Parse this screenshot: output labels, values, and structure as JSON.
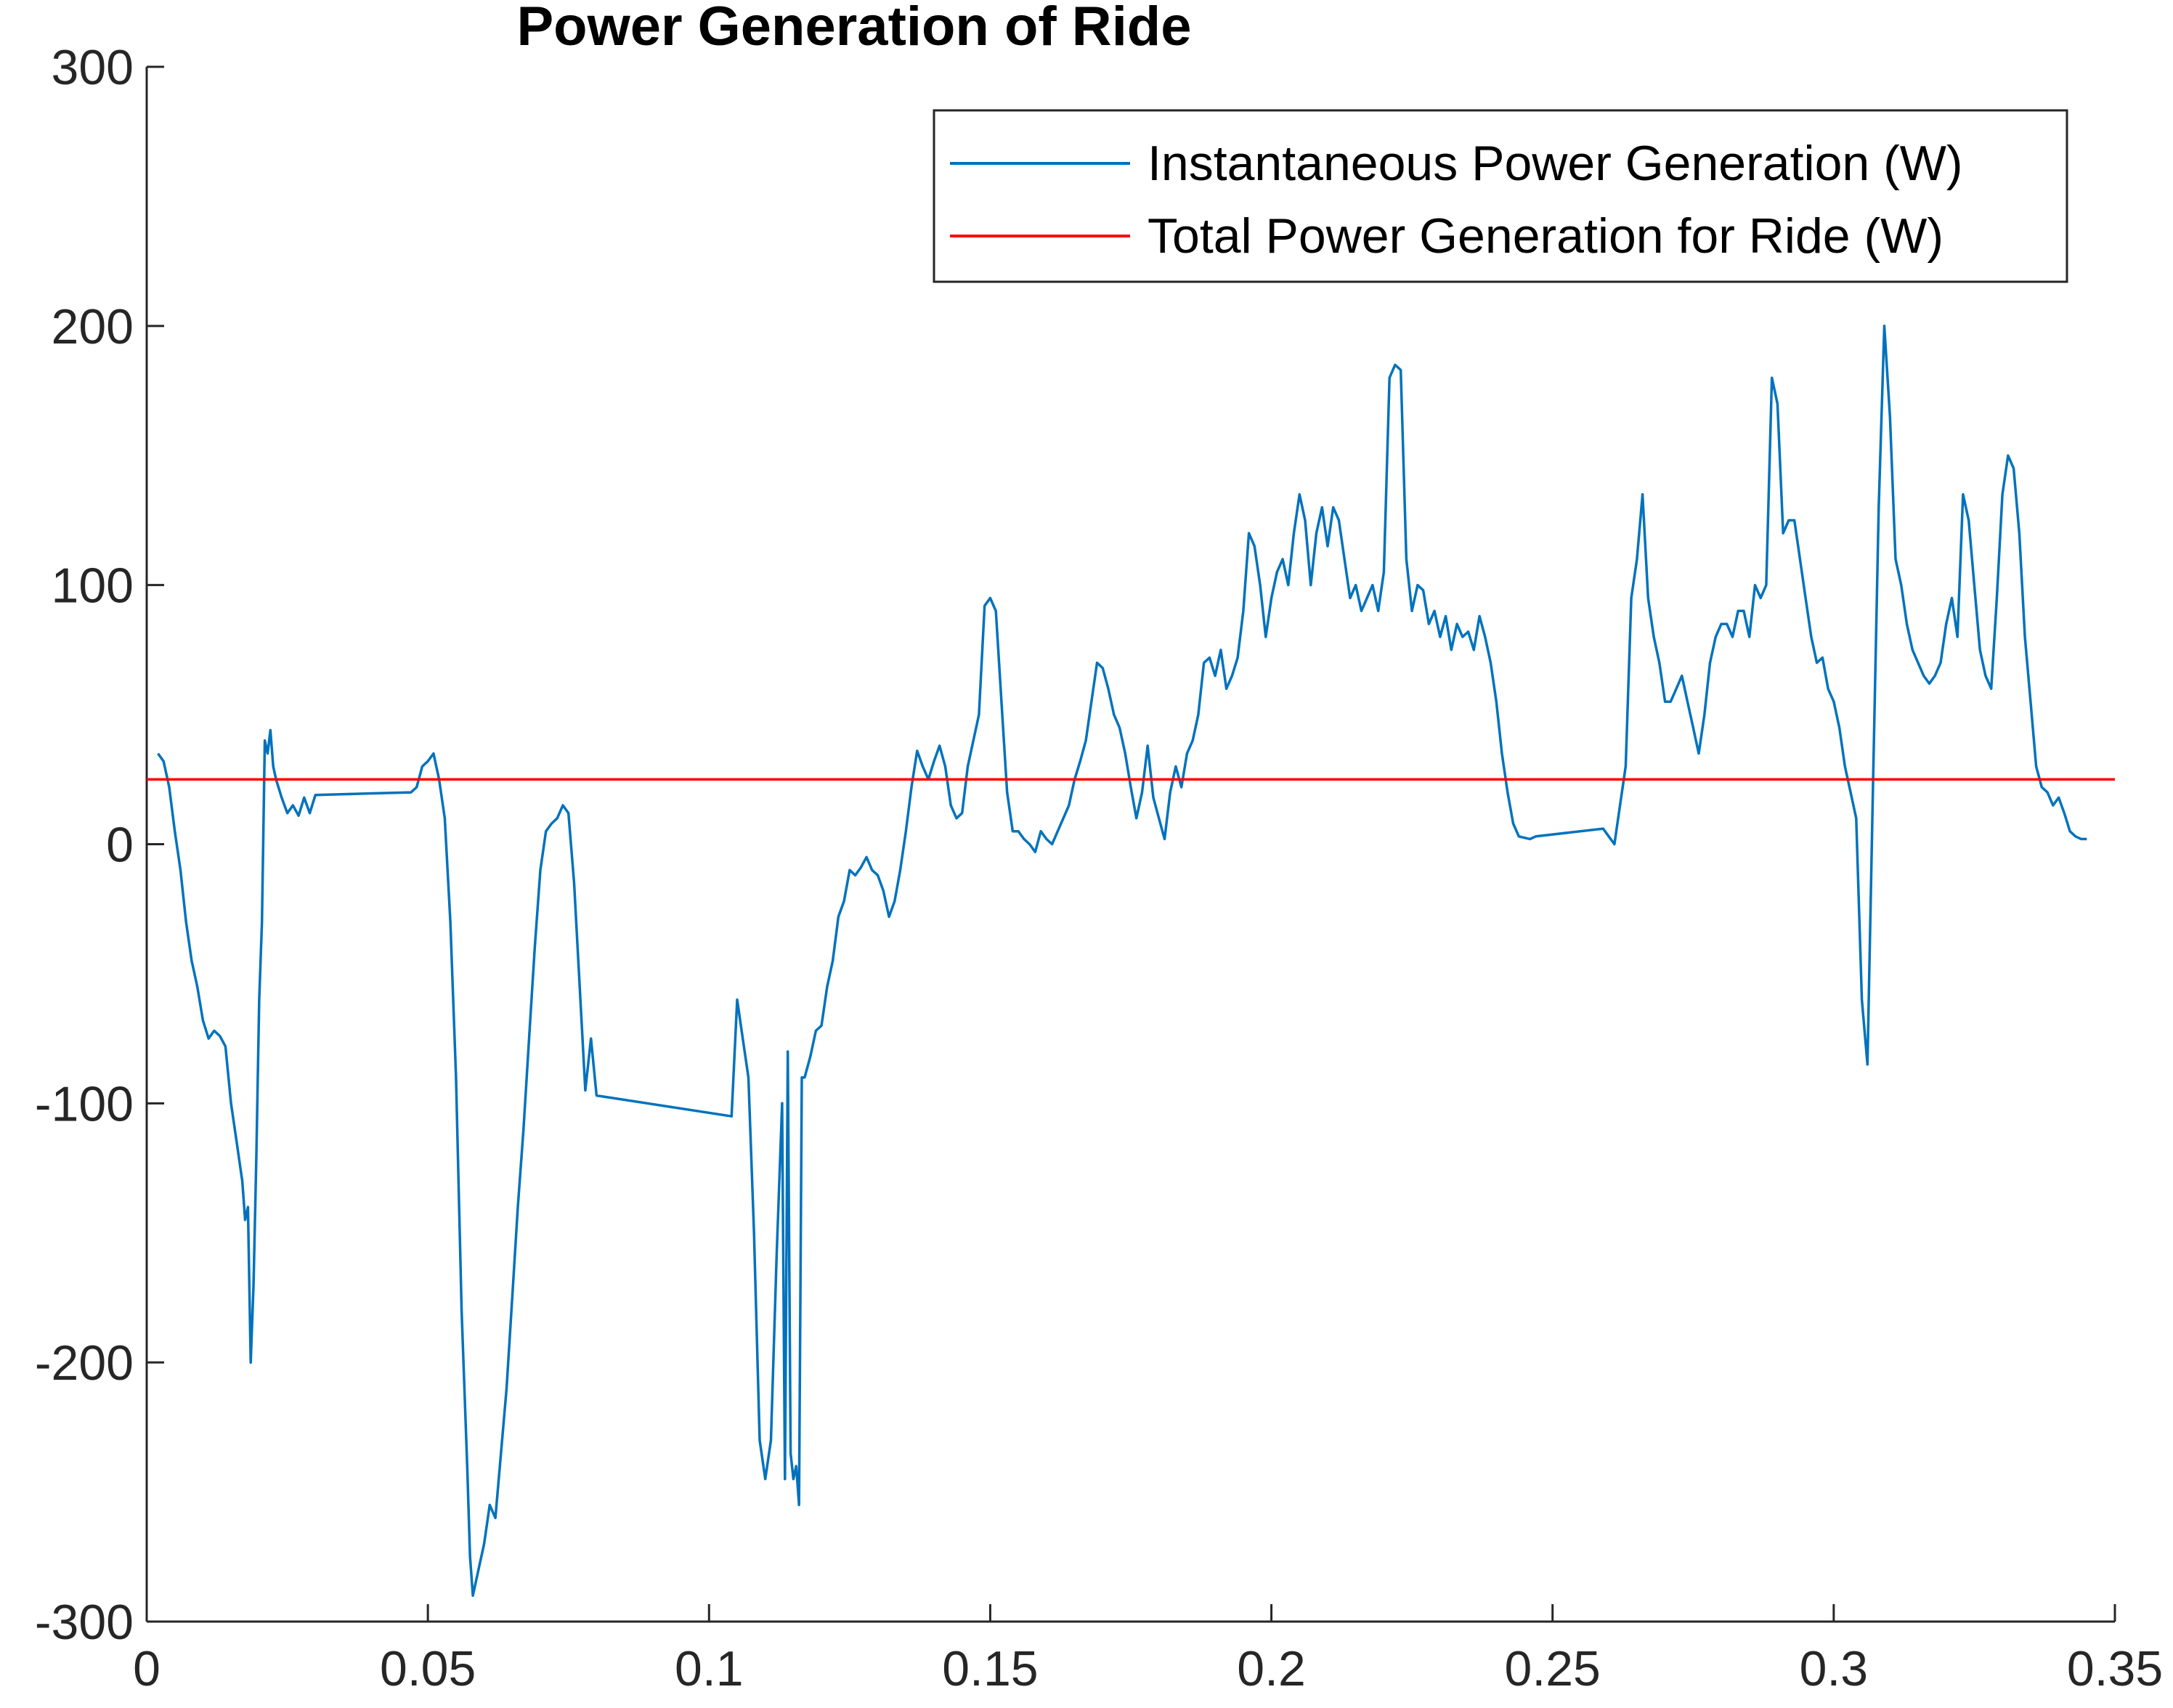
{
  "chart_data": {
    "type": "line",
    "title": "Power Generation of Ride",
    "xlabel": "",
    "ylabel": "",
    "xlim": [
      0,
      0.35
    ],
    "ylim": [
      -300,
      300
    ],
    "x_ticks": [
      "0",
      "0.05",
      "0.1",
      "0.15",
      "0.2",
      "0.25",
      "0.3",
      "0.35"
    ],
    "y_ticks": [
      "300",
      "200",
      "100",
      "0",
      "-100",
      "-200",
      "-300"
    ],
    "grid": false,
    "legend_position": "top-right",
    "series": [
      {
        "name": "Instantaneous Power Generation (W)",
        "color": "#0072BD",
        "points": [
          [
            0.002,
            35
          ],
          [
            0.003,
            32
          ],
          [
            0.004,
            22
          ],
          [
            0.005,
            5
          ],
          [
            0.006,
            -10
          ],
          [
            0.007,
            -30
          ],
          [
            0.008,
            -45
          ],
          [
            0.009,
            -55
          ],
          [
            0.01,
            -68
          ],
          [
            0.011,
            -75
          ],
          [
            0.012,
            -72
          ],
          [
            0.013,
            -74
          ],
          [
            0.014,
            -78
          ],
          [
            0.015,
            -100
          ],
          [
            0.016,
            -115
          ],
          [
            0.017,
            -130
          ],
          [
            0.0175,
            -145
          ],
          [
            0.018,
            -140
          ],
          [
            0.0185,
            -200
          ],
          [
            0.019,
            -170
          ],
          [
            0.0195,
            -120
          ],
          [
            0.02,
            -60
          ],
          [
            0.0205,
            -30
          ],
          [
            0.021,
            40
          ],
          [
            0.0215,
            35
          ],
          [
            0.022,
            44
          ],
          [
            0.0225,
            30
          ],
          [
            0.023,
            25
          ],
          [
            0.024,
            18
          ],
          [
            0.025,
            12
          ],
          [
            0.026,
            15
          ],
          [
            0.027,
            11
          ],
          [
            0.028,
            18
          ],
          [
            0.029,
            12
          ],
          [
            0.03,
            19
          ],
          [
            0.047,
            20
          ],
          [
            0.048,
            22
          ],
          [
            0.049,
            30
          ],
          [
            0.05,
            32
          ],
          [
            0.051,
            35
          ],
          [
            0.052,
            25
          ],
          [
            0.053,
            10
          ],
          [
            0.054,
            -30
          ],
          [
            0.055,
            -90
          ],
          [
            0.056,
            -180
          ],
          [
            0.057,
            -240
          ],
          [
            0.0575,
            -275
          ],
          [
            0.058,
            -290
          ],
          [
            0.059,
            -280
          ],
          [
            0.06,
            -270
          ],
          [
            0.061,
            -255
          ],
          [
            0.062,
            -260
          ],
          [
            0.063,
            -235
          ],
          [
            0.064,
            -210
          ],
          [
            0.065,
            -175
          ],
          [
            0.066,
            -140
          ],
          [
            0.067,
            -110
          ],
          [
            0.068,
            -75
          ],
          [
            0.069,
            -40
          ],
          [
            0.07,
            -10
          ],
          [
            0.071,
            5
          ],
          [
            0.072,
            8
          ],
          [
            0.073,
            10
          ],
          [
            0.074,
            15
          ],
          [
            0.075,
            12
          ],
          [
            0.076,
            -15
          ],
          [
            0.077,
            -55
          ],
          [
            0.078,
            -95
          ],
          [
            0.079,
            -75
          ],
          [
            0.08,
            -97
          ],
          [
            0.104,
            -105
          ],
          [
            0.105,
            -60
          ],
          [
            0.106,
            -75
          ],
          [
            0.107,
            -90
          ],
          [
            0.108,
            -150
          ],
          [
            0.109,
            -230
          ],
          [
            0.11,
            -245
          ],
          [
            0.111,
            -230
          ],
          [
            0.112,
            -160
          ],
          [
            0.113,
            -100
          ],
          [
            0.1135,
            -245
          ],
          [
            0.114,
            -80
          ],
          [
            0.1145,
            -235
          ],
          [
            0.115,
            -245
          ],
          [
            0.1155,
            -240
          ],
          [
            0.116,
            -255
          ],
          [
            0.1165,
            -90
          ],
          [
            0.117,
            -90
          ],
          [
            0.118,
            -82
          ],
          [
            0.119,
            -72
          ],
          [
            0.12,
            -70
          ],
          [
            0.121,
            -55
          ],
          [
            0.122,
            -45
          ],
          [
            0.123,
            -28
          ],
          [
            0.124,
            -22
          ],
          [
            0.125,
            -10
          ],
          [
            0.126,
            -12
          ],
          [
            0.127,
            -9
          ],
          [
            0.128,
            -5
          ],
          [
            0.129,
            -10
          ],
          [
            0.13,
            -12
          ],
          [
            0.131,
            -18
          ],
          [
            0.132,
            -28
          ],
          [
            0.133,
            -22
          ],
          [
            0.134,
            -10
          ],
          [
            0.135,
            5
          ],
          [
            0.136,
            22
          ],
          [
            0.137,
            36
          ],
          [
            0.138,
            30
          ],
          [
            0.139,
            25
          ],
          [
            0.14,
            32
          ],
          [
            0.141,
            38
          ],
          [
            0.142,
            30
          ],
          [
            0.143,
            15
          ],
          [
            0.144,
            10
          ],
          [
            0.145,
            12
          ],
          [
            0.146,
            30
          ],
          [
            0.147,
            40
          ],
          [
            0.148,
            50
          ],
          [
            0.149,
            92
          ],
          [
            0.15,
            95
          ],
          [
            0.151,
            90
          ],
          [
            0.152,
            55
          ],
          [
            0.153,
            20
          ],
          [
            0.154,
            5
          ],
          [
            0.155,
            5
          ],
          [
            0.156,
            2
          ],
          [
            0.157,
            0
          ],
          [
            0.158,
            -3
          ],
          [
            0.159,
            5
          ],
          [
            0.16,
            2
          ],
          [
            0.161,
            0
          ],
          [
            0.162,
            5
          ],
          [
            0.163,
            10
          ],
          [
            0.164,
            15
          ],
          [
            0.165,
            25
          ],
          [
            0.166,
            32
          ],
          [
            0.167,
            40
          ],
          [
            0.168,
            55
          ],
          [
            0.169,
            70
          ],
          [
            0.17,
            68
          ],
          [
            0.171,
            60
          ],
          [
            0.172,
            50
          ],
          [
            0.173,
            45
          ],
          [
            0.174,
            35
          ],
          [
            0.175,
            22
          ],
          [
            0.176,
            10
          ],
          [
            0.177,
            20
          ],
          [
            0.178,
            38
          ],
          [
            0.179,
            18
          ],
          [
            0.18,
            10
          ],
          [
            0.181,
            2
          ],
          [
            0.182,
            20
          ],
          [
            0.183,
            30
          ],
          [
            0.184,
            22
          ],
          [
            0.185,
            35
          ],
          [
            0.186,
            40
          ],
          [
            0.187,
            50
          ],
          [
            0.188,
            70
          ],
          [
            0.189,
            72
          ],
          [
            0.19,
            65
          ],
          [
            0.191,
            75
          ],
          [
            0.192,
            60
          ],
          [
            0.193,
            65
          ],
          [
            0.194,
            72
          ],
          [
            0.195,
            90
          ],
          [
            0.196,
            120
          ],
          [
            0.197,
            115
          ],
          [
            0.198,
            100
          ],
          [
            0.199,
            80
          ],
          [
            0.2,
            95
          ],
          [
            0.201,
            105
          ],
          [
            0.202,
            110
          ],
          [
            0.203,
            100
          ],
          [
            0.204,
            120
          ],
          [
            0.205,
            135
          ],
          [
            0.206,
            125
          ],
          [
            0.207,
            100
          ],
          [
            0.208,
            120
          ],
          [
            0.209,
            130
          ],
          [
            0.21,
            115
          ],
          [
            0.211,
            130
          ],
          [
            0.212,
            125
          ],
          [
            0.213,
            110
          ],
          [
            0.214,
            95
          ],
          [
            0.215,
            100
          ],
          [
            0.216,
            90
          ],
          [
            0.217,
            95
          ],
          [
            0.218,
            100
          ],
          [
            0.219,
            90
          ],
          [
            0.22,
            105
          ],
          [
            0.221,
            180
          ],
          [
            0.222,
            185
          ],
          [
            0.223,
            183
          ],
          [
            0.224,
            110
          ],
          [
            0.225,
            90
          ],
          [
            0.226,
            100
          ],
          [
            0.227,
            98
          ],
          [
            0.228,
            85
          ],
          [
            0.229,
            90
          ],
          [
            0.23,
            80
          ],
          [
            0.231,
            88
          ],
          [
            0.232,
            75
          ],
          [
            0.233,
            85
          ],
          [
            0.234,
            80
          ],
          [
            0.235,
            82
          ],
          [
            0.236,
            75
          ],
          [
            0.237,
            88
          ],
          [
            0.238,
            80
          ],
          [
            0.239,
            70
          ],
          [
            0.24,
            55
          ],
          [
            0.241,
            35
          ],
          [
            0.242,
            20
          ],
          [
            0.243,
            8
          ],
          [
            0.244,
            3
          ],
          [
            0.246,
            2
          ],
          [
            0.247,
            3
          ],
          [
            0.259,
            6
          ],
          [
            0.26,
            3
          ],
          [
            0.261,
            0
          ],
          [
            0.262,
            15
          ],
          [
            0.263,
            30
          ],
          [
            0.264,
            95
          ],
          [
            0.265,
            110
          ],
          [
            0.266,
            135
          ],
          [
            0.267,
            95
          ],
          [
            0.268,
            80
          ],
          [
            0.269,
            70
          ],
          [
            0.27,
            55
          ],
          [
            0.271,
            55
          ],
          [
            0.272,
            60
          ],
          [
            0.273,
            65
          ],
          [
            0.274,
            55
          ],
          [
            0.275,
            45
          ],
          [
            0.276,
            35
          ],
          [
            0.277,
            50
          ],
          [
            0.278,
            70
          ],
          [
            0.279,
            80
          ],
          [
            0.28,
            85
          ],
          [
            0.281,
            85
          ],
          [
            0.282,
            80
          ],
          [
            0.283,
            90
          ],
          [
            0.284,
            90
          ],
          [
            0.285,
            80
          ],
          [
            0.286,
            100
          ],
          [
            0.287,
            95
          ],
          [
            0.288,
            100
          ],
          [
            0.289,
            180
          ],
          [
            0.29,
            170
          ],
          [
            0.291,
            120
          ],
          [
            0.292,
            125
          ],
          [
            0.293,
            125
          ],
          [
            0.294,
            110
          ],
          [
            0.295,
            95
          ],
          [
            0.296,
            80
          ],
          [
            0.297,
            70
          ],
          [
            0.298,
            72
          ],
          [
            0.299,
            60
          ],
          [
            0.3,
            55
          ],
          [
            0.301,
            45
          ],
          [
            0.302,
            30
          ],
          [
            0.303,
            20
          ],
          [
            0.304,
            10
          ],
          [
            0.305,
            -60
          ],
          [
            0.306,
            -85
          ],
          [
            0.307,
            25
          ],
          [
            0.308,
            130
          ],
          [
            0.309,
            200
          ],
          [
            0.31,
            165
          ],
          [
            0.311,
            110
          ],
          [
            0.312,
            100
          ],
          [
            0.313,
            85
          ],
          [
            0.314,
            75
          ],
          [
            0.315,
            70
          ],
          [
            0.316,
            65
          ],
          [
            0.317,
            62
          ],
          [
            0.318,
            65
          ],
          [
            0.319,
            70
          ],
          [
            0.32,
            85
          ],
          [
            0.321,
            95
          ],
          [
            0.322,
            80
          ],
          [
            0.323,
            135
          ],
          [
            0.324,
            125
          ],
          [
            0.325,
            100
          ],
          [
            0.326,
            75
          ],
          [
            0.327,
            65
          ],
          [
            0.328,
            60
          ],
          [
            0.329,
            95
          ],
          [
            0.33,
            135
          ],
          [
            0.331,
            150
          ],
          [
            0.332,
            145
          ],
          [
            0.333,
            120
          ],
          [
            0.334,
            80
          ],
          [
            0.335,
            55
          ],
          [
            0.336,
            30
          ],
          [
            0.337,
            22
          ],
          [
            0.338,
            20
          ],
          [
            0.339,
            15
          ],
          [
            0.34,
            18
          ],
          [
            0.341,
            12
          ],
          [
            0.342,
            5
          ],
          [
            0.343,
            3
          ],
          [
            0.344,
            2
          ],
          [
            0.345,
            2
          ]
        ]
      },
      {
        "name": "Total Power Generation for Ride (W)",
        "color": "#FF0000",
        "points": [
          [
            0,
            25
          ],
          [
            0.35,
            25
          ]
        ]
      }
    ]
  }
}
